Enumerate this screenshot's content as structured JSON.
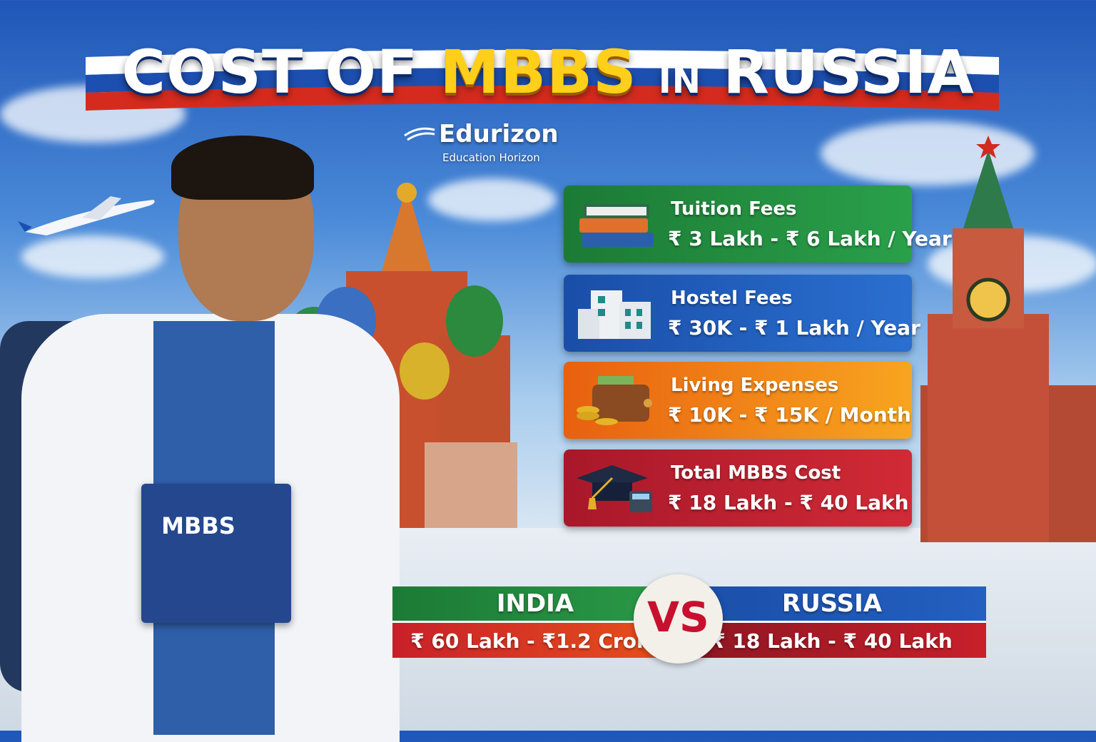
{
  "title": {
    "part1": "COST OF",
    "highlight": "MBBS",
    "connector": "IN",
    "part2": "RUSSIA"
  },
  "logo": {
    "name": "Edurizon",
    "tagline": "Education Horizon"
  },
  "book_label": "MBBS",
  "cards": [
    {
      "label": "Tuition Fees",
      "value": "₹ 3 Lakh - ₹ 6 Lakh / Year",
      "icon": "books-icon",
      "color": "#1e8a3a"
    },
    {
      "label": "Hostel Fees",
      "value": "₹ 30K - ₹ 1 Lakh / Year",
      "icon": "building-icon",
      "color": "#1d58b8"
    },
    {
      "label": "Living Expenses",
      "value": "₹ 10K - ₹ 15K / Month",
      "icon": "wallet-icon",
      "color": "#ef7a12"
    },
    {
      "label": "Total MBBS Cost",
      "value": "₹ 18 Lakh - ₹ 40 Lakh",
      "icon": "graduation-cap-icon",
      "color": "#c21f32"
    }
  ],
  "comparison": {
    "india": {
      "label": "INDIA",
      "value": "₹ 60 Lakh - ₹1.2 Crore"
    },
    "vs": "VS",
    "russia": {
      "label": "RUSSIA",
      "value": "₹ 18 Lakh - ₹ 40 Lakh"
    }
  }
}
